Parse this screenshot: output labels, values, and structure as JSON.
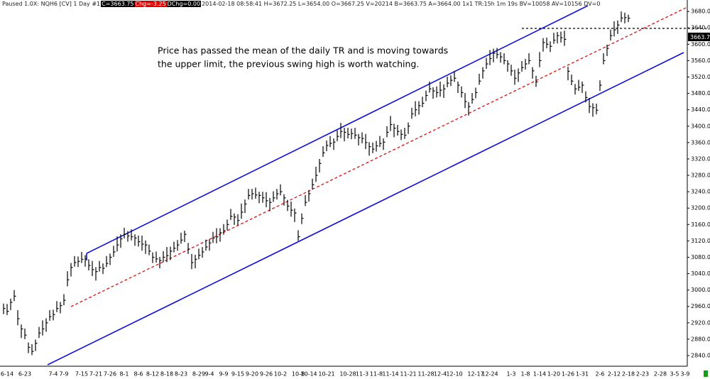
{
  "header": {
    "status": "Paused 1.0X: NQH6 [CV] 1 Day  #1",
    "close_box": "C=3663.75",
    "change_box": "Chg=-3.25",
    "dchange_box": "DChg=0.00",
    "info": "2014-02-18 08:58:41 H=3672.25 L=3654.00 O=3667.25 V=20214 B=3663.75 A=3664.00 1x1 TR:15h 1m 19s BV=10058 AV=10156 DV=0"
  },
  "chart_data": {
    "type": "ohlc",
    "color": "#000000",
    "annotation_lines": [
      "Price has passed the mean of the daily TR and is moving towards",
      "the upper limit, the previous swing high is worth watching."
    ],
    "categories": [
      null,
      "6-14",
      null,
      null,
      null,
      null,
      "6-23",
      null,
      null,
      null,
      null,
      null,
      null,
      null,
      "7-4",
      null,
      null,
      "7-9",
      null,
      null,
      null,
      null,
      "7-15",
      null,
      null,
      null,
      "7-21",
      null,
      null,
      null,
      "7-26",
      null,
      null,
      null,
      "8-1",
      null,
      null,
      null,
      "8-6",
      null,
      null,
      null,
      "8-12",
      null,
      null,
      null,
      "8-18",
      null,
      null,
      null,
      "8-23",
      null,
      null,
      null,
      null,
      "8-29",
      null,
      null,
      "9-4",
      null,
      null,
      null,
      "9-9",
      null,
      null,
      null,
      "9-15",
      null,
      null,
      null,
      "9-20",
      null,
      null,
      null,
      "9-26",
      null,
      null,
      null,
      "10-2",
      null,
      null,
      null,
      null,
      "10-8",
      null,
      null,
      "10-14",
      null,
      null,
      null,
      null,
      "10-21",
      null,
      null,
      null,
      null,
      null,
      "10-28",
      null,
      null,
      null,
      "11-3",
      null,
      null,
      null,
      "11-8",
      null,
      null,
      null,
      "11-14",
      null,
      null,
      null,
      null,
      "11-21",
      null,
      null,
      null,
      null,
      "11-28",
      null,
      null,
      null,
      "12-4",
      null,
      null,
      null,
      "12-10",
      null,
      null,
      null,
      null,
      null,
      "12-17",
      null,
      null,
      null,
      "12-24",
      null,
      null,
      null,
      null,
      null,
      "1-3",
      null,
      null,
      null,
      "1-8",
      null,
      null,
      null,
      "1-14",
      null,
      null,
      null,
      "1-20",
      null,
      null,
      null,
      "1-26",
      null,
      null,
      null,
      "1-31",
      null,
      null,
      null,
      null,
      "2-6",
      null,
      null,
      null,
      "2-12",
      null,
      null,
      null,
      "2-18",
      null,
      null,
      null,
      "2-23",
      null,
      null,
      null,
      null,
      "2-28",
      null,
      null,
      null,
      "3-5",
      null,
      null,
      "3-9"
    ],
    "high": [
      2967,
      2966,
      2979,
      3000,
      2951,
      2916,
      2906,
      2872,
      2868,
      2879,
      2910,
      2926,
      2931,
      2951,
      2952,
      2973,
      2971,
      2990,
      3046,
      3066,
      3083,
      3082,
      3093,
      3085,
      3075,
      3071,
      3056,
      3071,
      3065,
      3083,
      3089,
      3108,
      3131,
      3136,
      3152,
      3144,
      3148,
      3136,
      3133,
      3133,
      3121,
      3111,
      3092,
      3094,
      3081,
      3095,
      3105,
      3106,
      3118,
      3122,
      3140,
      3145,
      3115,
      3088,
      3086,
      3101,
      3105,
      3123,
      3124,
      3142,
      3151,
      3151,
      3161,
      3172,
      3198,
      3187,
      3185,
      3211,
      3221,
      3247,
      3247,
      3250,
      3240,
      3240,
      3239,
      3225,
      3241,
      3247,
      3258,
      3234,
      3220,
      3216,
      3199,
      3146,
      3187,
      3232,
      3244,
      3272,
      3301,
      3320,
      3351,
      3365,
      3376,
      3370,
      3390,
      3408,
      3396,
      3396,
      3394,
      3396,
      3381,
      3385,
      3381,
      3361,
      3360,
      3364,
      3376,
      3370,
      3400,
      3425,
      3406,
      3403,
      3392,
      3396,
      3409,
      3445,
      3461,
      3461,
      3472,
      3487,
      3509,
      3495,
      3497,
      3509,
      3502,
      3521,
      3524,
      3535,
      3509,
      3497,
      3481,
      3459,
      3481,
      3494,
      3528,
      3544,
      3567,
      3586,
      3589,
      3591,
      3581,
      3578,
      3561,
      3550,
      3538,
      3541,
      3559,
      3564,
      3578,
      3544,
      3523,
      3581,
      3615,
      3616,
      3607,
      3628,
      3630,
      3631,
      3633,
      3545,
      3526,
      3503,
      3513,
      3509,
      3485,
      3469,
      3456,
      3455,
      3512,
      3578,
      3599,
      3636,
      3656,
      3658,
      3680,
      3677,
      3672.25,
      null,
      null,
      null,
      null,
      null,
      null,
      null,
      null,
      null,
      null,
      null,
      null,
      null,
      null,
      null,
      null
    ],
    "low": [
      2941,
      2939,
      2951,
      2973,
      2914,
      2883,
      2880,
      2846,
      2841,
      2851,
      2883,
      2889,
      2898,
      2925,
      2926,
      2946,
      2943,
      2963,
      3009,
      3033,
      3057,
      3056,
      3066,
      3057,
      3048,
      3034,
      3023,
      3045,
      3039,
      3056,
      3061,
      3081,
      3094,
      3103,
      3126,
      3118,
      3121,
      3108,
      3106,
      3096,
      3088,
      3085,
      3066,
      3067,
      3053,
      3068,
      3068,
      3073,
      3092,
      3096,
      3113,
      3117,
      3088,
      3051,
      3053,
      3075,
      3079,
      3096,
      3096,
      3115,
      3114,
      3118,
      3135,
      3146,
      3171,
      3159,
      3158,
      3174,
      3188,
      3221,
      3221,
      3223,
      3212,
      3213,
      3202,
      3192,
      3215,
      3221,
      3231,
      3206,
      3193,
      3179,
      3166,
      3120,
      3161,
      3205,
      3216,
      3245,
      3264,
      3287,
      3325,
      3339,
      3349,
      3342,
      3363,
      3371,
      3363,
      3370,
      3368,
      3369,
      3353,
      3358,
      3344,
      3328,
      3334,
      3338,
      3349,
      3342,
      3373,
      3388,
      3373,
      3377,
      3366,
      3369,
      3381,
      3418,
      3424,
      3428,
      3446,
      3461,
      3482,
      3467,
      3470,
      3472,
      3469,
      3495,
      3498,
      3508,
      3481,
      3470,
      3444,
      3426,
      3455,
      3468,
      3501,
      3516,
      3540,
      3549,
      3556,
      3565,
      3555,
      3551,
      3533,
      3523,
      3501,
      3508,
      3533,
      3538,
      3551,
      3516,
      3496,
      3544,
      3582,
      3590,
      3581,
      3601,
      3602,
      3604,
      3596,
      3512,
      3500,
      3477,
      3486,
      3481,
      3458,
      3432,
      3423,
      3429,
      3486,
      3551,
      3571,
      3609,
      3619,
      3625,
      3654,
      3651,
      3654,
      null,
      null,
      null,
      null,
      null,
      null,
      null,
      null,
      null,
      null,
      null,
      null,
      null,
      null,
      null,
      null
    ],
    "close": [
      2955,
      2948,
      2970,
      2985,
      2930,
      2905,
      2890,
      2860,
      2850,
      2870,
      2895,
      2905,
      2920,
      2935,
      2940,
      2955,
      2962,
      2975,
      3025,
      3055,
      3067,
      3070,
      3075,
      3076,
      3060,
      3050,
      3045,
      3055,
      3053,
      3065,
      3080,
      3093,
      3110,
      3125,
      3136,
      3132,
      3130,
      3127,
      3118,
      3112,
      3110,
      3095,
      3080,
      3076,
      3072,
      3080,
      3084,
      3095,
      3102,
      3110,
      3122,
      3136,
      3100,
      3067,
      3075,
      3085,
      3093,
      3105,
      3115,
      3127,
      3130,
      3140,
      3145,
      3160,
      3180,
      3178,
      3170,
      3190,
      3210,
      3231,
      3235,
      3232,
      3231,
      3225,
      3218,
      3214,
      3225,
      3235,
      3240,
      3225,
      3205,
      3195,
      3188,
      3130,
      3175,
      3214,
      3235,
      3257,
      3280,
      3309,
      3335,
      3353,
      3358,
      3361,
      3375,
      3387,
      3385,
      3380,
      3382,
      3378,
      3372,
      3370,
      3360,
      3350,
      3344,
      3352,
      3358,
      3361,
      3385,
      3404,
      3395,
      3387,
      3380,
      3378,
      3400,
      3430,
      3440,
      3450,
      3456,
      3475,
      3491,
      3486,
      3482,
      3488,
      3491,
      3505,
      3512,
      3517,
      3500,
      3482,
      3460,
      3448,
      3465,
      3482,
      3510,
      3535,
      3552,
      3565,
      3578,
      3575,
      3569,
      3560,
      3552,
      3535,
      3517,
      3530,
      3543,
      3552,
      3560,
      3535,
      3508,
      3560,
      3604,
      3600,
      3595,
      3610,
      3621,
      3616,
      3612,
      3534,
      3510,
      3491,
      3495,
      3500,
      3470,
      3448,
      3445,
      3439,
      3500,
      3560,
      3590,
      3621,
      3635,
      3647,
      3664,
      3665,
      3663.75,
      null,
      null,
      null,
      null,
      null,
      null,
      null,
      null,
      null,
      null,
      null,
      null,
      null,
      null,
      null,
      null
    ],
    "ylim": [
      2814,
      3708
    ],
    "yticks": [
      {
        "value": 2840,
        "label": "2840.00"
      },
      {
        "value": 2880,
        "label": "2880.00"
      },
      {
        "value": 2920,
        "label": "2920.00"
      },
      {
        "value": 2960,
        "label": "2960.00"
      },
      {
        "value": 3000,
        "label": "3000.00"
      },
      {
        "value": 3040,
        "label": "3040.00"
      },
      {
        "value": 3080,
        "label": "3080.00"
      },
      {
        "value": 3120,
        "label": "3120.00"
      },
      {
        "value": 3160,
        "label": "3160.00"
      },
      {
        "value": 3200,
        "label": "3200.00"
      },
      {
        "value": 3240,
        "label": "3240.00"
      },
      {
        "value": 3280,
        "label": "3280.00"
      },
      {
        "value": 3320,
        "label": "3320.00"
      },
      {
        "value": 3360,
        "label": "3360.00"
      },
      {
        "value": 3400,
        "label": "3400.00"
      },
      {
        "value": 3440,
        "label": "3440.00"
      },
      {
        "value": 3480,
        "label": "3480.00"
      },
      {
        "value": 3520,
        "label": "3520.00"
      },
      {
        "value": 3560,
        "label": "3560.00"
      },
      {
        "value": 3600,
        "label": "3600.00"
      },
      {
        "value": 3640,
        "label": "3640.00"
      },
      {
        "value": 3680,
        "label": "3680.00"
      }
    ]
  }
}
